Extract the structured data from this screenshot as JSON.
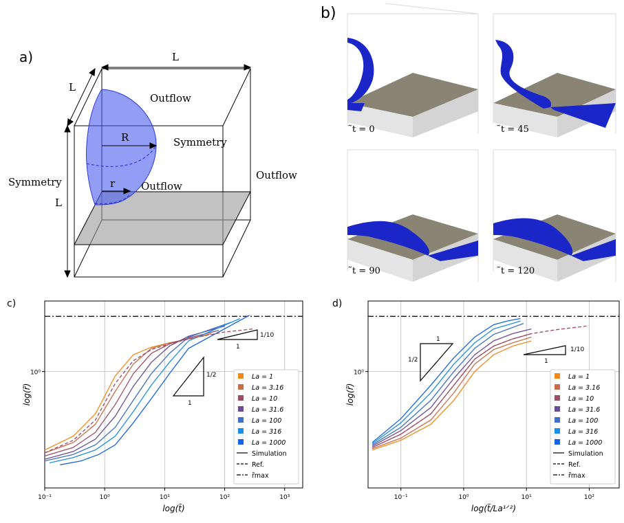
{
  "panel_a": {
    "label": "a)",
    "dim_top": "L",
    "dim_side": "L",
    "dim_left": "L",
    "outflow_top": "Outflow",
    "symmetry_right": "Symmetry",
    "outflow_right": "Outflow",
    "symmetry_left": "Symmetry",
    "outflow_mid": "Outflow",
    "radius_big": "R",
    "radius_small": "r"
  },
  "panel_b": {
    "label": "b)",
    "frames": [
      {
        "time": "̃t = 0"
      },
      {
        "time": "̃t = 45"
      },
      {
        "time": "̃t = 90"
      },
      {
        "time": "̃t = 120"
      }
    ]
  },
  "colors": {
    "La=1": "#f28a1b",
    "La=3.16": "#c86d4a",
    "La=10": "#9a4f66",
    "La=31.6": "#6a4c93",
    "La=100": "#3f6fc8",
    "La=316": "#1d8ee6",
    "La=1000": "#1463e8",
    "ref": "#9b4a60",
    "blue_drop": "#2330d8",
    "plane": "#8a8474"
  },
  "chart_data": [
    {
      "panel": "c)",
      "type": "line",
      "xlabel": "log(t̃)",
      "ylabel": "log(r̃)",
      "xscale": "log",
      "yscale": "log",
      "xlim": [
        0.1,
        2000
      ],
      "ylim": [
        0.06,
        5.5
      ],
      "x_ticks": [
        "10⁻¹",
        "10⁰",
        "10¹",
        "10²",
        "10³"
      ],
      "y_ticks": [
        "10⁰"
      ],
      "grid": true,
      "r_max": 3.8,
      "legend_position": "lower-right",
      "slope_labels": {
        "steep_rise": "1/2",
        "steep_run": "1",
        "shallow_rise": "1/10",
        "shallow_run": "1"
      },
      "series": [
        {
          "name": "La = 1",
          "x": [
            0.1,
            0.3,
            0.7,
            1.5,
            3,
            6,
            12,
            25,
            50
          ],
          "y": [
            0.15,
            0.21,
            0.36,
            0.9,
            1.5,
            1.8,
            2.0,
            2.2,
            2.4
          ]
        },
        {
          "name": "La = 3.16",
          "x": [
            0.1,
            0.3,
            0.7,
            1.5,
            3,
            6,
            12,
            25,
            60
          ],
          "y": [
            0.14,
            0.18,
            0.28,
            0.62,
            1.2,
            1.75,
            2.0,
            2.2,
            2.5
          ]
        },
        {
          "name": "La = 10",
          "x": [
            0.1,
            0.3,
            0.7,
            1.5,
            3,
            6,
            12,
            25,
            80
          ],
          "y": [
            0.13,
            0.16,
            0.23,
            0.45,
            0.95,
            1.55,
            1.95,
            2.25,
            2.7
          ]
        },
        {
          "name": "La = 31.6",
          "x": [
            0.1,
            0.3,
            0.7,
            1.5,
            3,
            6,
            12,
            25,
            100
          ],
          "y": [
            0.12,
            0.145,
            0.195,
            0.34,
            0.7,
            1.25,
            1.85,
            2.35,
            3.0
          ]
        },
        {
          "name": "La = 100",
          "x": [
            0.1,
            0.3,
            0.7,
            1.5,
            3,
            6,
            12,
            25,
            130
          ],
          "y": [
            0.115,
            0.135,
            0.17,
            0.26,
            0.5,
            0.95,
            1.55,
            2.3,
            3.3
          ]
        },
        {
          "name": "La = 316",
          "x": [
            0.12,
            0.3,
            0.7,
            1.5,
            3,
            6,
            12,
            25,
            180
          ],
          "y": [
            0.11,
            0.125,
            0.15,
            0.21,
            0.38,
            0.72,
            1.25,
            2.1,
            3.6
          ]
        },
        {
          "name": "La = 1000",
          "x": [
            0.18,
            0.4,
            0.8,
            1.5,
            3,
            6,
            12,
            25,
            260
          ],
          "y": [
            0.105,
            0.115,
            0.135,
            0.17,
            0.29,
            0.52,
            0.95,
            1.75,
            3.9
          ]
        }
      ],
      "reference": {
        "name": "Ref.",
        "x": [
          0.1,
          0.3,
          0.7,
          1.5,
          3,
          6,
          12,
          25,
          50,
          100,
          300
        ],
        "y": [
          0.14,
          0.19,
          0.31,
          0.75,
          1.3,
          1.7,
          1.95,
          2.2,
          2.4,
          2.6,
          2.8
        ]
      },
      "legend": [
        "La = 1",
        "La = 3.16",
        "La = 10",
        "La = 31.6",
        "La = 100",
        "La = 316",
        "La = 1000",
        "Simulation",
        "Ref.",
        "r̃max"
      ]
    },
    {
      "panel": "d)",
      "type": "line",
      "xlabel": "log(t̃/La¹ᐟ²)",
      "ylabel": "log(r̃)",
      "xscale": "log",
      "yscale": "log",
      "xlim": [
        0.03,
        300
      ],
      "ylim": [
        0.06,
        5.5
      ],
      "x_ticks": [
        "10⁻¹",
        "10⁰",
        "10¹",
        "10²"
      ],
      "y_ticks": [
        "10⁰"
      ],
      "grid": true,
      "r_max": 3.8,
      "legend_position": "lower-right",
      "slope_labels": {
        "steep_rise": "1/2",
        "steep_run": "1",
        "shallow_rise": "1/10",
        "shallow_run": "1"
      },
      "series": [
        {
          "name": "La = 1",
          "x": [
            0.035,
            0.1,
            0.3,
            0.7,
            1.5,
            3,
            6,
            12
          ],
          "y": [
            0.15,
            0.19,
            0.28,
            0.5,
            1.0,
            1.5,
            1.85,
            2.1
          ]
        },
        {
          "name": "La = 3.16",
          "x": [
            0.035,
            0.1,
            0.3,
            0.7,
            1.5,
            3,
            6,
            12
          ],
          "y": [
            0.155,
            0.2,
            0.31,
            0.6,
            1.2,
            1.7,
            2.0,
            2.3
          ]
        },
        {
          "name": "La = 10",
          "x": [
            0.035,
            0.1,
            0.3,
            0.7,
            1.5,
            3,
            6,
            12
          ],
          "y": [
            0.16,
            0.22,
            0.36,
            0.72,
            1.35,
            1.85,
            2.2,
            2.5
          ]
        },
        {
          "name": "La = 31.6",
          "x": [
            0.035,
            0.1,
            0.3,
            0.7,
            1.5,
            3,
            6,
            12
          ],
          "y": [
            0.165,
            0.24,
            0.42,
            0.85,
            1.5,
            2.1,
            2.5,
            2.8
          ]
        },
        {
          "name": "La = 100",
          "x": [
            0.035,
            0.1,
            0.3,
            0.7,
            1.5,
            3,
            6,
            9
          ],
          "y": [
            0.17,
            0.26,
            0.5,
            1.0,
            1.75,
            2.45,
            2.9,
            3.2
          ]
        },
        {
          "name": "La = 316",
          "x": [
            0.035,
            0.1,
            0.3,
            0.7,
            1.5,
            3,
            6,
            8
          ],
          "y": [
            0.175,
            0.29,
            0.6,
            1.2,
            2.0,
            2.8,
            3.2,
            3.4
          ]
        },
        {
          "name": "La = 1000",
          "x": [
            0.035,
            0.1,
            0.3,
            0.7,
            1.5,
            3,
            5,
            8
          ],
          "y": [
            0.18,
            0.32,
            0.72,
            1.4,
            2.3,
            3.1,
            3.4,
            3.6
          ]
        }
      ],
      "reference": {
        "name": "Ref.",
        "x": [
          0.035,
          0.1,
          0.3,
          0.7,
          1.5,
          3,
          6,
          12,
          30,
          90
        ],
        "y": [
          0.16,
          0.22,
          0.36,
          0.72,
          1.35,
          1.85,
          2.2,
          2.5,
          2.75,
          3.0
        ]
      },
      "legend": [
        "La = 1",
        "La = 3.16",
        "La = 10",
        "La = 31.6",
        "La = 100",
        "La = 316",
        "La = 1000",
        "Simulation",
        "Ref.",
        "r̃max"
      ]
    }
  ]
}
